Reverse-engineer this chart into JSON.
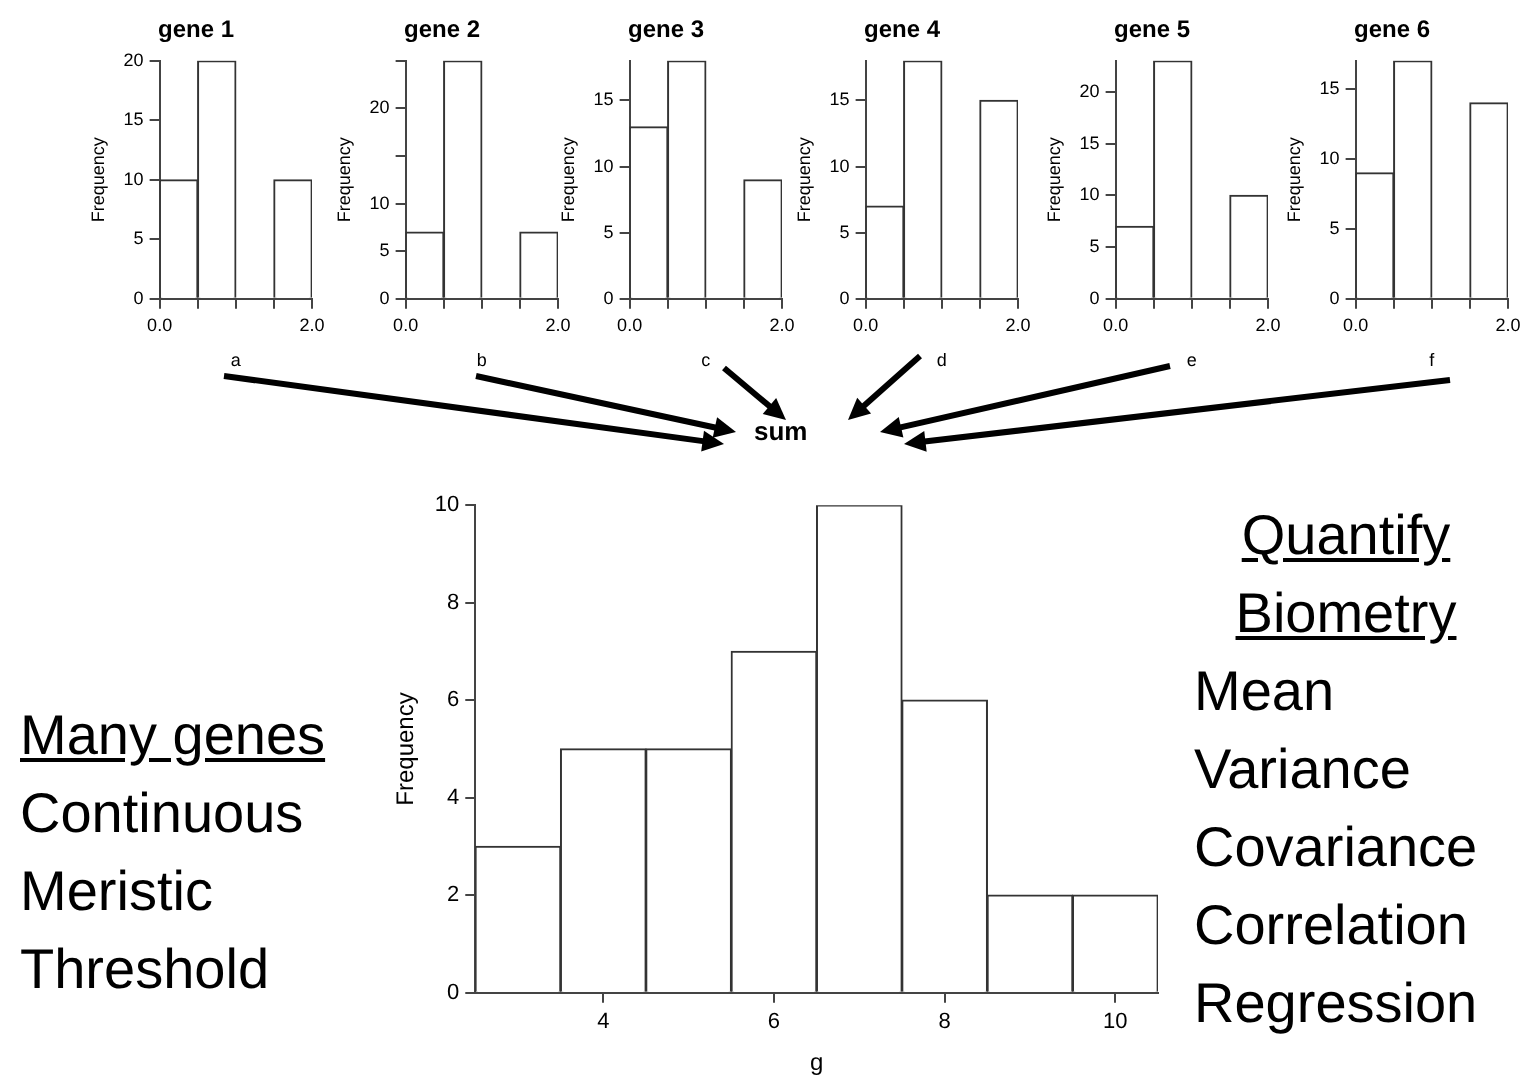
{
  "chart_data": [
    {
      "type": "histogram",
      "title": "gene 1",
      "xlabel": "a",
      "ylabel": "Frequency",
      "bins": [
        0,
        0.5,
        1,
        1.5,
        2
      ],
      "values": [
        10,
        20,
        0,
        10
      ],
      "color": "#ffffff",
      "xlim": [
        0,
        2
      ],
      "xticks": [
        {
          "value": 0,
          "label": "0.0"
        },
        {
          "value": 0.5,
          "label": null
        },
        {
          "value": 1,
          "label": null
        },
        {
          "value": 1.5,
          "label": null
        },
        {
          "value": 2,
          "label": "2.0"
        }
      ],
      "ylim": [
        0,
        20
      ],
      "yticks": [
        0,
        5,
        10,
        15,
        20
      ],
      "grid": false,
      "legend": false
    },
    {
      "type": "histogram",
      "title": "gene 2",
      "xlabel": "b",
      "ylabel": "Frequency",
      "bins": [
        0,
        0.5,
        1,
        1.5,
        2
      ],
      "values": [
        7,
        25,
        0,
        7
      ],
      "color": "#ffffff",
      "xlim": [
        0,
        2
      ],
      "xticks": [
        {
          "value": 0,
          "label": "0.0"
        },
        {
          "value": 0.5,
          "label": null
        },
        {
          "value": 1,
          "label": null
        },
        {
          "value": 1.5,
          "label": null
        },
        {
          "value": 2,
          "label": "2.0"
        }
      ],
      "ylim": [
        0,
        25
      ],
      "yticks": [
        0,
        5,
        10,
        {
          "value": 15,
          "label": null
        },
        20,
        {
          "value": 25,
          "label": null
        }
      ],
      "grid": false,
      "legend": false
    },
    {
      "type": "histogram",
      "title": "gene 3",
      "xlabel": "c",
      "ylabel": "Frequency",
      "bins": [
        0,
        0.5,
        1,
        1.5,
        2
      ],
      "values": [
        13,
        18,
        0,
        9
      ],
      "color": "#ffffff",
      "xlim": [
        0,
        2
      ],
      "xticks": [
        {
          "value": 0,
          "label": "0.0"
        },
        {
          "value": 0.5,
          "label": null
        },
        {
          "value": 1,
          "label": null
        },
        {
          "value": 1.5,
          "label": null
        },
        {
          "value": 2,
          "label": "2.0"
        }
      ],
      "ylim": [
        0,
        18
      ],
      "yticks": [
        0,
        5,
        10,
        15
      ],
      "grid": false,
      "legend": false
    },
    {
      "type": "histogram",
      "title": "gene 4",
      "xlabel": "d",
      "ylabel": "Frequency",
      "bins": [
        0,
        0.5,
        1,
        1.5,
        2
      ],
      "values": [
        7,
        18,
        0,
        15
      ],
      "color": "#ffffff",
      "xlim": [
        0,
        2
      ],
      "xticks": [
        {
          "value": 0,
          "label": "0.0"
        },
        {
          "value": 0.5,
          "label": null
        },
        {
          "value": 1,
          "label": null
        },
        {
          "value": 1.5,
          "label": null
        },
        {
          "value": 2,
          "label": "2.0"
        }
      ],
      "ylim": [
        0,
        18
      ],
      "yticks": [
        0,
        5,
        10,
        15
      ],
      "grid": false,
      "legend": false
    },
    {
      "type": "histogram",
      "title": "gene 5",
      "xlabel": "e",
      "ylabel": "Frequency",
      "bins": [
        0,
        0.5,
        1,
        1.5,
        2
      ],
      "values": [
        7,
        23,
        0,
        10
      ],
      "color": "#ffffff",
      "xlim": [
        0,
        2
      ],
      "xticks": [
        {
          "value": 0,
          "label": "0.0"
        },
        {
          "value": 0.5,
          "label": null
        },
        {
          "value": 1,
          "label": null
        },
        {
          "value": 1.5,
          "label": null
        },
        {
          "value": 2,
          "label": "2.0"
        }
      ],
      "ylim": [
        0,
        23
      ],
      "yticks": [
        0,
        5,
        10,
        15,
        20
      ],
      "grid": false,
      "legend": false
    },
    {
      "type": "histogram",
      "title": "gene 6",
      "xlabel": "f",
      "ylabel": "Frequency",
      "bins": [
        0,
        0.5,
        1,
        1.5,
        2
      ],
      "values": [
        9,
        17,
        0,
        14
      ],
      "color": "#ffffff",
      "xlim": [
        0,
        2
      ],
      "xticks": [
        {
          "value": 0,
          "label": "0.0"
        },
        {
          "value": 0.5,
          "label": null
        },
        {
          "value": 1,
          "label": null
        },
        {
          "value": 1.5,
          "label": null
        },
        {
          "value": 2,
          "label": "2.0"
        }
      ],
      "ylim": [
        0,
        17
      ],
      "yticks": [
        0,
        5,
        10,
        15
      ],
      "grid": false,
      "legend": false
    },
    {
      "type": "histogram",
      "xlabel": "g",
      "ylabel": "Frequency",
      "bins": [
        2.5,
        3.5,
        4.5,
        5.5,
        6.5,
        7.5,
        8.5,
        9.5,
        10.5
      ],
      "values": [
        3,
        5,
        5,
        7,
        10,
        6,
        2,
        2
      ],
      "color": "#ffffff",
      "xlim": [
        2.5,
        10.5
      ],
      "xticks": [
        4,
        6,
        8,
        10
      ],
      "ylim": [
        0,
        10
      ],
      "yticks": [
        0,
        2,
        4,
        6,
        8,
        10
      ],
      "grid": false,
      "legend": false,
      "annotations": [
        "sum"
      ]
    },
    {
      "type": "other",
      "title": "Many genes",
      "annotations": [
        "Continuous",
        "Meristic",
        "Threshold"
      ]
    },
    {
      "type": "other",
      "title": "Quantify Biometry",
      "annotations": [
        "Mean",
        "Variance",
        "Covariance",
        "Correlation",
        "Regression"
      ]
    }
  ]
}
